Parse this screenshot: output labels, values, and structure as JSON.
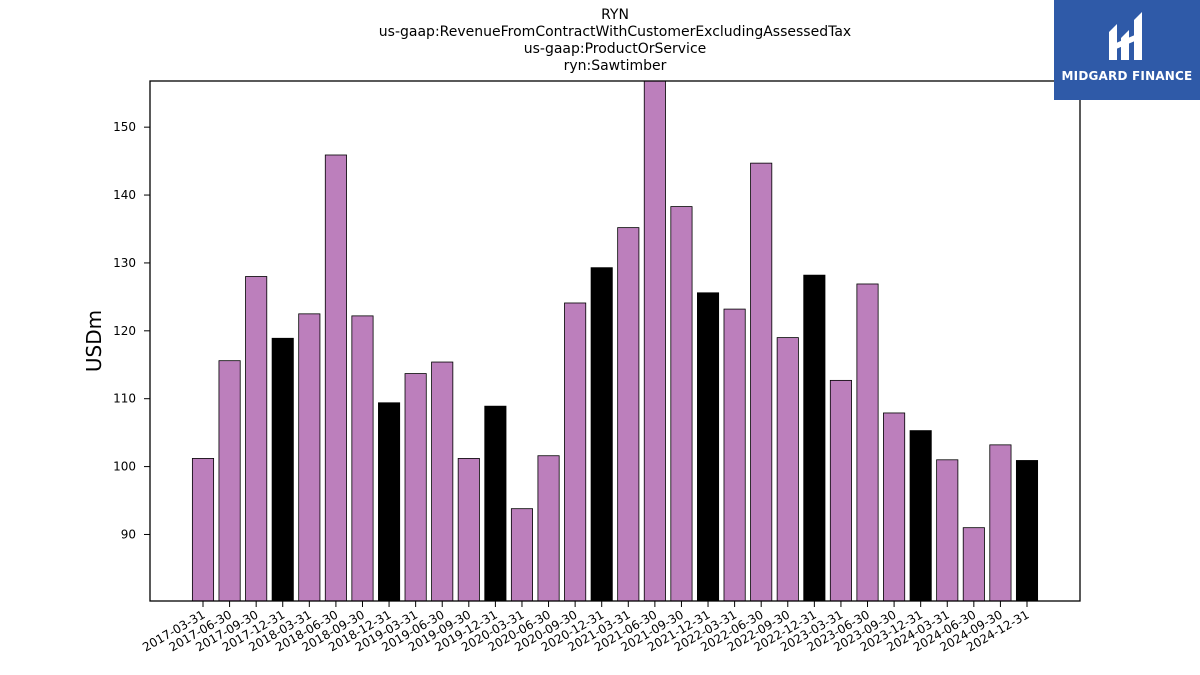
{
  "chart_data": {
    "type": "bar",
    "title_lines": [
      "RYN",
      "us-gaap:RevenueFromContractWithCustomerExcludingAssessedTax",
      "us-gaap:ProductOrService",
      "ryn:Sawtimber"
    ],
    "xlabel": "",
    "ylabel": "USDm",
    "ylim": [
      80.2,
      156.8
    ],
    "yticks": [
      90,
      100,
      110,
      120,
      130,
      140,
      150
    ],
    "grid": false,
    "categories": [
      "2017-03-31",
      "2017-06-30",
      "2017-09-30",
      "2017-12-31",
      "2018-03-31",
      "2018-06-30",
      "2018-09-30",
      "2018-12-31",
      "2019-03-31",
      "2019-06-30",
      "2019-09-30",
      "2019-12-31",
      "2020-03-31",
      "2020-06-30",
      "2020-09-30",
      "2020-12-31",
      "2021-03-31",
      "2021-06-30",
      "2021-09-30",
      "2021-12-31",
      "2022-03-31",
      "2022-06-30",
      "2022-09-30",
      "2022-12-31",
      "2023-03-31",
      "2023-06-30",
      "2023-09-30",
      "2023-12-31",
      "2024-03-31",
      "2024-06-30",
      "2024-09-30",
      "2024-12-31"
    ],
    "values": [
      101.2,
      115.6,
      128.0,
      118.9,
      122.5,
      145.9,
      122.2,
      109.4,
      113.7,
      115.4,
      101.2,
      108.9,
      93.8,
      101.6,
      124.1,
      129.3,
      135.2,
      157.0,
      138.3,
      125.6,
      123.2,
      144.7,
      119.0,
      128.2,
      112.7,
      126.9,
      107.9,
      105.3,
      101.0,
      91.0,
      103.2,
      100.9
    ],
    "colors": {
      "quarter": "#bc7fbc",
      "year_end": "#000000",
      "edge": "#000000"
    }
  },
  "logo": {
    "text": "MIDGARD FINANCE",
    "background": "#2f5aa8"
  }
}
